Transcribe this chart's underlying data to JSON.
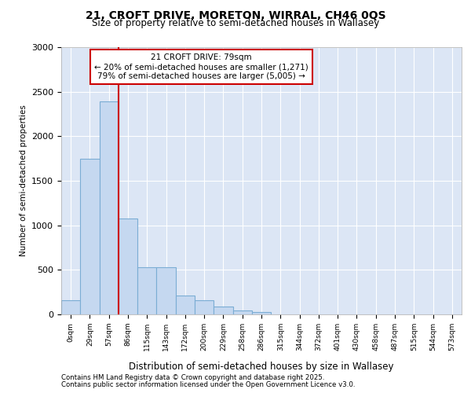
{
  "title_line1": "21, CROFT DRIVE, MORETON, WIRRAL, CH46 0QS",
  "title_line2": "Size of property relative to semi-detached houses in Wallasey",
  "xlabel": "Distribution of semi-detached houses by size in Wallasey",
  "ylabel": "Number of semi-detached properties",
  "bar_labels": [
    "0sqm",
    "29sqm",
    "57sqm",
    "86sqm",
    "115sqm",
    "143sqm",
    "172sqm",
    "200sqm",
    "229sqm",
    "258sqm",
    "286sqm",
    "315sqm",
    "344sqm",
    "372sqm",
    "401sqm",
    "430sqm",
    "458sqm",
    "487sqm",
    "515sqm",
    "544sqm",
    "573sqm"
  ],
  "bar_values": [
    160,
    1750,
    2390,
    1080,
    530,
    530,
    215,
    155,
    90,
    40,
    30,
    0,
    0,
    0,
    0,
    0,
    0,
    0,
    0,
    0,
    0
  ],
  "bar_color": "#c5d8f0",
  "bar_edge_color": "#7badd4",
  "vline_x_bar_index": 3,
  "annotation_title": "21 CROFT DRIVE: 79sqm",
  "annotation_line1": "← 20% of semi-detached houses are smaller (1,271)",
  "annotation_line2": "79% of semi-detached houses are larger (5,005) →",
  "vline_color": "#cc0000",
  "box_edge_color": "#cc0000",
  "ylim": [
    0,
    3000
  ],
  "yticks": [
    0,
    500,
    1000,
    1500,
    2000,
    2500,
    3000
  ],
  "background_color": "#dce6f5",
  "footer_line1": "Contains HM Land Registry data © Crown copyright and database right 2025.",
  "footer_line2": "Contains public sector information licensed under the Open Government Licence v3.0."
}
